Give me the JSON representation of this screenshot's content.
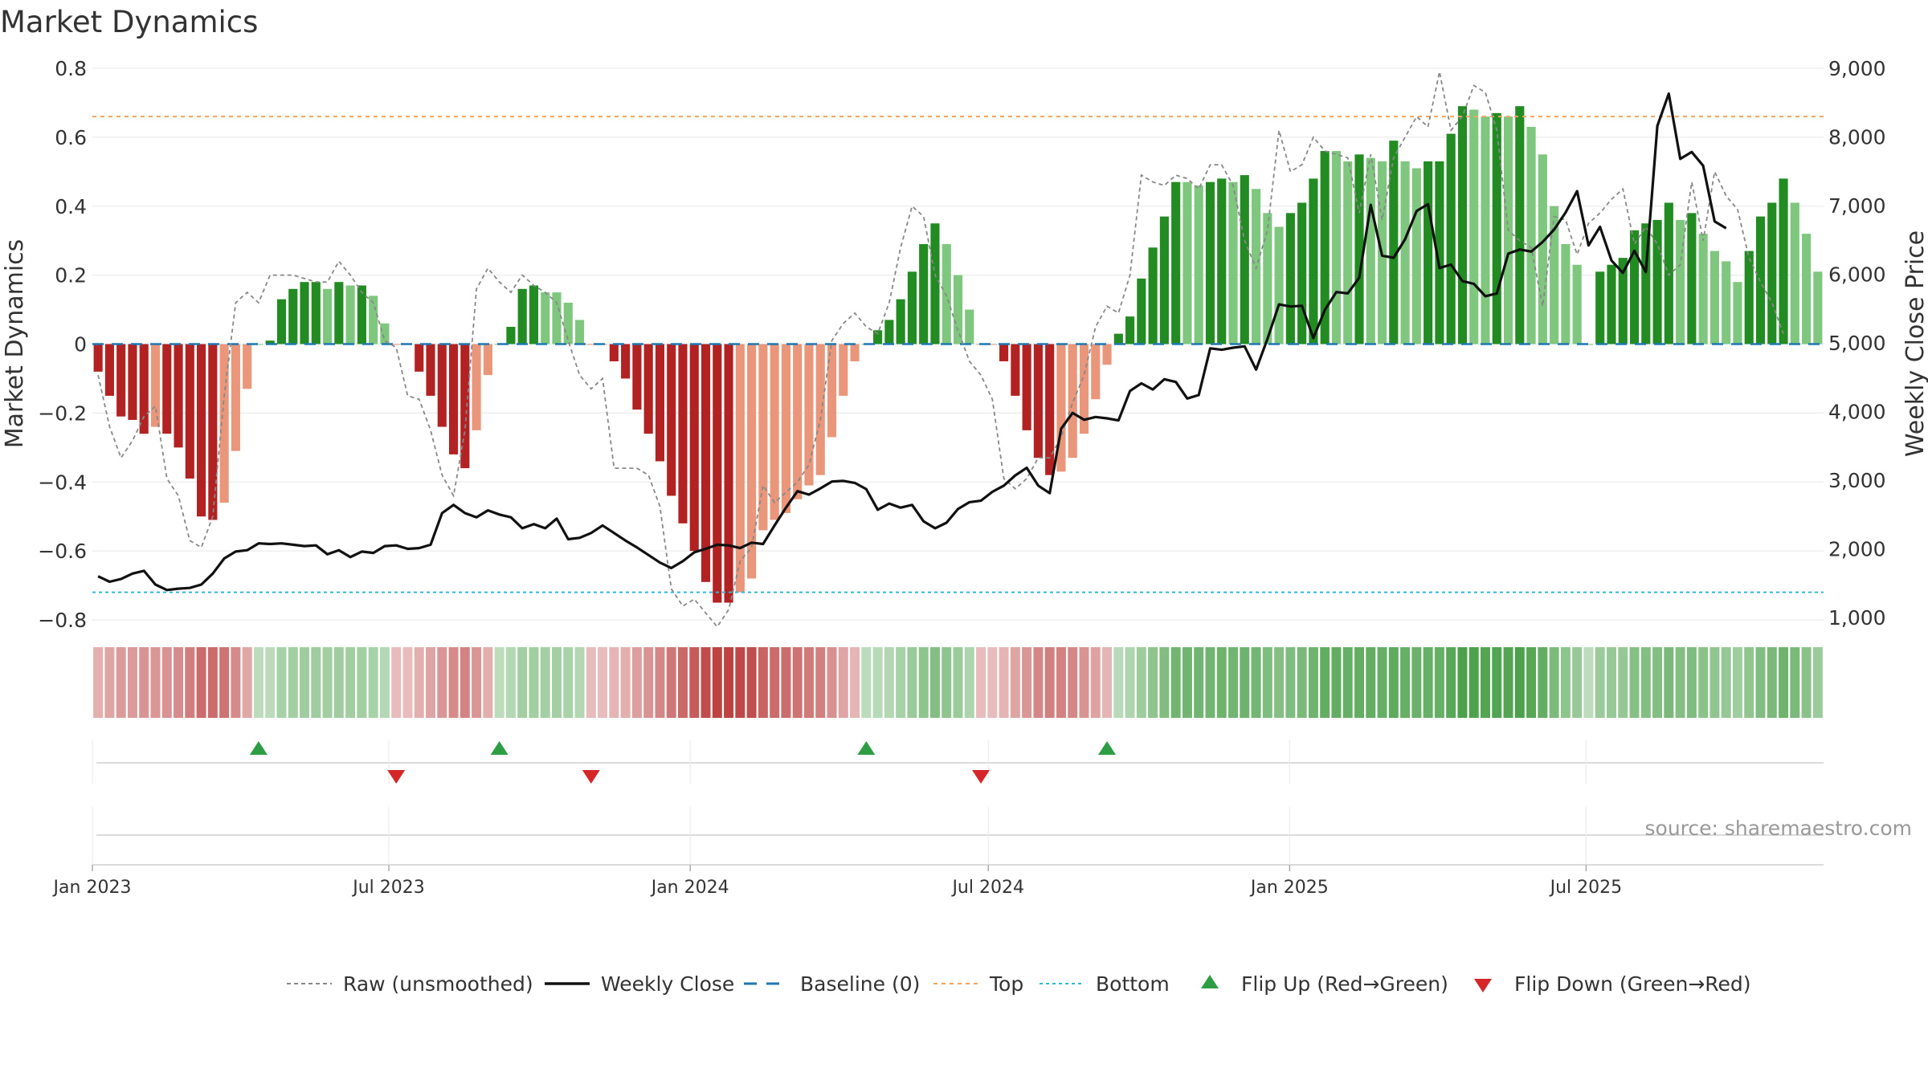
{
  "chart_data": {
    "type": "bar",
    "title": "Market Dynamics",
    "ylabel": "Market Dynamics",
    "y2label": "Weekly Close Price",
    "ylim": [
      -0.84,
      0.82
    ],
    "y2lim": [
      800,
      9100
    ],
    "yticks": [
      "0.8",
      "0.6",
      "0.4",
      "0.2",
      "0",
      "−0.2",
      "−0.4",
      "−0.6",
      "−0.8"
    ],
    "y2ticks": [
      "9,000",
      "8,000",
      "7,000",
      "6,000",
      "5,000",
      "4,000",
      "3,000",
      "2,000",
      "1,000"
    ],
    "xticks": [
      "Jan 2023",
      "Jul 2023",
      "Jan 2024",
      "Jul 2024",
      "Jan 2025",
      "Jul 2025"
    ],
    "start_date": "2023-01-01",
    "top": 0.66,
    "bottom": -0.72,
    "baseline": 0,
    "bars": [
      -0.08,
      -0.15,
      -0.21,
      -0.22,
      -0.26,
      -0.24,
      -0.26,
      -0.3,
      -0.39,
      -0.5,
      -0.51,
      -0.46,
      -0.31,
      -0.13,
      0.0,
      0.01,
      0.13,
      0.16,
      0.18,
      0.18,
      0.16,
      0.18,
      0.17,
      0.17,
      0.14,
      0.06,
      0.0,
      0.0,
      -0.08,
      -0.15,
      -0.24,
      -0.32,
      -0.36,
      -0.25,
      -0.09,
      0.0,
      0.05,
      0.16,
      0.17,
      0.15,
      0.15,
      0.12,
      0.07,
      0.0,
      0.0,
      -0.05,
      -0.1,
      -0.19,
      -0.26,
      -0.34,
      -0.44,
      -0.52,
      -0.6,
      -0.69,
      -0.75,
      -0.75,
      -0.72,
      -0.68,
      -0.54,
      -0.51,
      -0.49,
      -0.45,
      -0.41,
      -0.38,
      -0.27,
      -0.15,
      -0.05,
      0.0,
      0.04,
      0.07,
      0.13,
      0.21,
      0.29,
      0.35,
      0.29,
      0.2,
      0.1,
      0.0,
      0.0,
      -0.05,
      -0.15,
      -0.25,
      -0.33,
      -0.38,
      -0.37,
      -0.33,
      -0.26,
      -0.16,
      -0.06,
      0.03,
      0.08,
      0.19,
      0.28,
      0.37,
      0.47,
      0.47,
      0.46,
      0.47,
      0.48,
      0.47,
      0.49,
      0.45,
      0.38,
      0.34,
      0.38,
      0.41,
      0.48,
      0.56,
      0.56,
      0.53,
      0.55,
      0.54,
      0.53,
      0.59,
      0.53,
      0.51,
      0.53,
      0.53,
      0.61,
      0.69,
      0.68,
      0.66,
      0.67,
      0.66,
      0.69,
      0.63,
      0.55,
      0.4,
      0.29,
      0.23,
      0.0,
      0.21,
      0.23,
      0.25,
      0.33,
      0.35,
      0.36,
      0.41,
      0.36,
      0.38,
      0.32,
      0.27,
      0.24,
      0.18,
      0.27,
      0.37,
      0.41,
      0.48,
      0.41,
      0.32,
      0.21
    ],
    "bar_states": [
      "R",
      "R",
      "R",
      "R",
      "R",
      "r",
      "R",
      "R",
      "R",
      "R",
      "R",
      "r",
      "r",
      "r",
      "g",
      "G",
      "G",
      "G",
      "G",
      "G",
      "g",
      "G",
      "g",
      "G",
      "g",
      "g",
      "r",
      "r",
      "R",
      "R",
      "R",
      "R",
      "R",
      "r",
      "r",
      "g",
      "G",
      "G",
      "G",
      "g",
      "g",
      "g",
      "g",
      "r",
      "r",
      "R",
      "R",
      "R",
      "R",
      "R",
      "R",
      "R",
      "R",
      "R",
      "R",
      "R",
      "r",
      "r",
      "r",
      "r",
      "r",
      "r",
      "r",
      "r",
      "r",
      "r",
      "r",
      "g",
      "G",
      "G",
      "G",
      "G",
      "G",
      "G",
      "g",
      "g",
      "g",
      "r",
      "r",
      "R",
      "R",
      "R",
      "R",
      "R",
      "r",
      "r",
      "r",
      "r",
      "r",
      "G",
      "G",
      "G",
      "G",
      "G",
      "G",
      "g",
      "g",
      "G",
      "G",
      "g",
      "G",
      "g",
      "g",
      "g",
      "G",
      "G",
      "G",
      "G",
      "g",
      "g",
      "G",
      "g",
      "g",
      "G",
      "g",
      "g",
      "G",
      "G",
      "G",
      "G",
      "g",
      "g",
      "G",
      "g",
      "G",
      "g",
      "g",
      "g",
      "g",
      "g",
      "g",
      "G",
      "G",
      "G",
      "G",
      "G",
      "G",
      "G",
      "g",
      "G",
      "g",
      "g",
      "g",
      "g",
      "G",
      "G",
      "G",
      "G",
      "g",
      "g",
      "g"
    ],
    "raw": [
      -0.09,
      -0.24,
      -0.33,
      -0.28,
      -0.21,
      -0.18,
      -0.39,
      -0.44,
      -0.57,
      -0.59,
      -0.5,
      -0.15,
      0.12,
      0.15,
      0.12,
      0.2,
      0.2,
      0.2,
      0.19,
      0.18,
      0.18,
      0.24,
      0.2,
      0.15,
      0.12,
      0.01,
      -0.01,
      -0.15,
      -0.16,
      -0.25,
      -0.38,
      -0.44,
      -0.25,
      0.16,
      0.22,
      0.18,
      0.15,
      0.2,
      0.17,
      0.15,
      0.12,
      0.01,
      -0.09,
      -0.13,
      -0.1,
      -0.36,
      -0.36,
      -0.36,
      -0.38,
      -0.47,
      -0.71,
      -0.76,
      -0.74,
      -0.78,
      -0.82,
      -0.77,
      -0.63,
      -0.59,
      -0.41,
      -0.46,
      -0.43,
      -0.4,
      -0.35,
      -0.22,
      0.01,
      0.06,
      0.09,
      0.05,
      0.03,
      0.12,
      0.28,
      0.4,
      0.37,
      0.2,
      0.14,
      0.04,
      -0.05,
      -0.09,
      -0.16,
      -0.39,
      -0.42,
      -0.39,
      -0.33,
      -0.33,
      -0.27,
      -0.17,
      -0.09,
      0.05,
      0.11,
      0.09,
      0.2,
      0.49,
      0.47,
      0.46,
      0.49,
      0.48,
      0.45,
      0.52,
      0.52,
      0.46,
      0.3,
      0.22,
      0.33,
      0.62,
      0.5,
      0.52,
      0.6,
      0.56,
      0.55,
      0.54,
      0.38,
      0.55,
      0.36,
      0.54,
      0.6,
      0.66,
      0.63,
      0.79,
      0.62,
      0.66,
      0.75,
      0.73,
      0.62,
      0.33,
      0.3,
      0.28,
      0.11,
      0.37,
      0.36,
      0.26,
      0.35,
      0.38,
      0.42,
      0.45,
      0.29,
      0.34,
      0.29,
      0.2,
      0.23,
      0.47,
      0.3,
      0.5,
      0.43,
      0.39,
      0.25,
      0.18,
      0.12,
      0.03
    ],
    "close": [
      1600,
      1520,
      1560,
      1640,
      1680,
      1480,
      1400,
      1420,
      1430,
      1480,
      1640,
      1860,
      1960,
      1980,
      2080,
      2070,
      2080,
      2060,
      2040,
      2050,
      1920,
      1980,
      1880,
      1960,
      1940,
      2040,
      2050,
      2000,
      2010,
      2060,
      2520,
      2640,
      2520,
      2460,
      2560,
      2500,
      2460,
      2300,
      2360,
      2300,
      2440,
      2140,
      2160,
      2230,
      2340,
      2230,
      2120,
      2020,
      1910,
      1800,
      1720,
      1820,
      1950,
      2000,
      2060,
      2050,
      2010,
      2090,
      2070,
      2340,
      2600,
      2840,
      2790,
      2880,
      2980,
      2990,
      2960,
      2870,
      2570,
      2660,
      2600,
      2640,
      2400,
      2300,
      2380,
      2580,
      2680,
      2700,
      2830,
      2920,
      3070,
      3180,
      2920,
      2810,
      3750,
      3980,
      3880,
      3920,
      3900,
      3870,
      4300,
      4410,
      4320,
      4470,
      4430,
      4190,
      4240,
      4920,
      4900,
      4930,
      4950,
      4610,
      5060,
      5560,
      5530,
      5540,
      5070,
      5480,
      5740,
      5720,
      5950,
      7010,
      6270,
      6240,
      6510,
      6920,
      7020,
      6090,
      6140,
      5900,
      5860,
      5680,
      5720,
      6300,
      6360,
      6330,
      6470,
      6650,
      6900,
      7210,
      6420,
      6690,
      6200,
      6020,
      6340,
      6030,
      8160,
      8630,
      7680,
      7780,
      7580,
      6770,
      6670
    ],
    "flip_up": [
      14,
      35,
      67,
      88
    ],
    "flip_down": [
      26,
      43,
      77
    ],
    "palette": {
      "red_strong": "#b22222",
      "red_fading": "#e9967a",
      "green_strong": "#228b22",
      "green_fading": "#7fc77f",
      "top_line": "#f4a460",
      "bottom_line": "#2eb8d6",
      "baseline": "#1f77b4",
      "raw": "#888888",
      "close": "#111111",
      "flip_up": "#2e9e45",
      "flip_down": "#d62728"
    },
    "legend": [
      {
        "label": "Raw (unsmoothed)",
        "style": "raw"
      },
      {
        "label": "Weekly Close",
        "style": "close"
      },
      {
        "label": "Baseline (0)",
        "style": "baseline"
      },
      {
        "label": "Top",
        "style": "top"
      },
      {
        "label": "Bottom",
        "style": "bottom"
      },
      {
        "label": "Flip Up (Red→Green)",
        "style": "flipup"
      },
      {
        "label": "Flip Down (Green→Red)",
        "style": "flipdown"
      }
    ],
    "legend_position": "bottom",
    "source": "source: sharemaestro.com"
  }
}
